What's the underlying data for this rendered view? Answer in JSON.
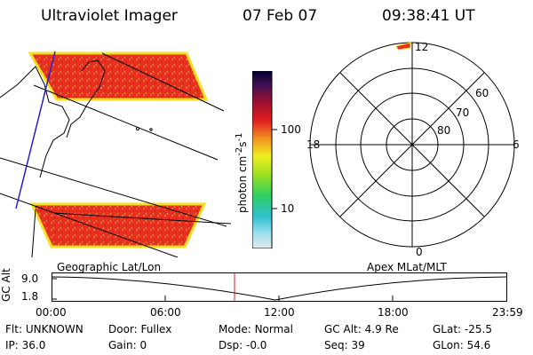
{
  "header": {
    "title": "Ultraviolet Imager",
    "date": "07 Feb 07",
    "time": "09:38:41 UT"
  },
  "colorbar": {
    "label_html": "photon cm<sup>-2</sup>s<sup>-1</sup>",
    "ticks": [
      "100",
      "10"
    ]
  },
  "polar_plot": {
    "mlt_labels": [
      "12",
      "18",
      "6",
      "0"
    ],
    "lat_labels": [
      "60",
      "70",
      "80"
    ]
  },
  "timeline": {
    "ylabel": "GC Alt",
    "y_ticks": [
      "9.0",
      "1.8"
    ],
    "left_label": "Geographic Lat/Lon",
    "right_label": "Apex MLat/MLT",
    "x_ticks": [
      "00:00",
      "06:00",
      "12:00",
      "18:00",
      "23:59"
    ]
  },
  "status": {
    "flt_label": "Flt:",
    "flt_value": "UNKNOWN",
    "door_label": "Door:",
    "door_value": "Fullex",
    "mode_label": "Mode:",
    "mode_value": "Normal",
    "gcalt_label": "GC Alt:",
    "gcalt_value": "4.9 Re",
    "glat_label": "GLat:",
    "glat_value": "-25.5",
    "ip_label": "IP:",
    "ip_value": "36.0",
    "gain_label": "Gain:",
    "gain_value": "0",
    "dsp_label": "Dsp:",
    "dsp_value": "-0.0",
    "seq_label": "Seq:",
    "seq_value": "39",
    "glon_label": "GLon:",
    "glon_value": "54.6"
  },
  "colors": {
    "aurora_fill": "#e83020",
    "aurora_edge": "#f5e020",
    "cursor": "#d02020",
    "map_line": "#2020d0"
  }
}
